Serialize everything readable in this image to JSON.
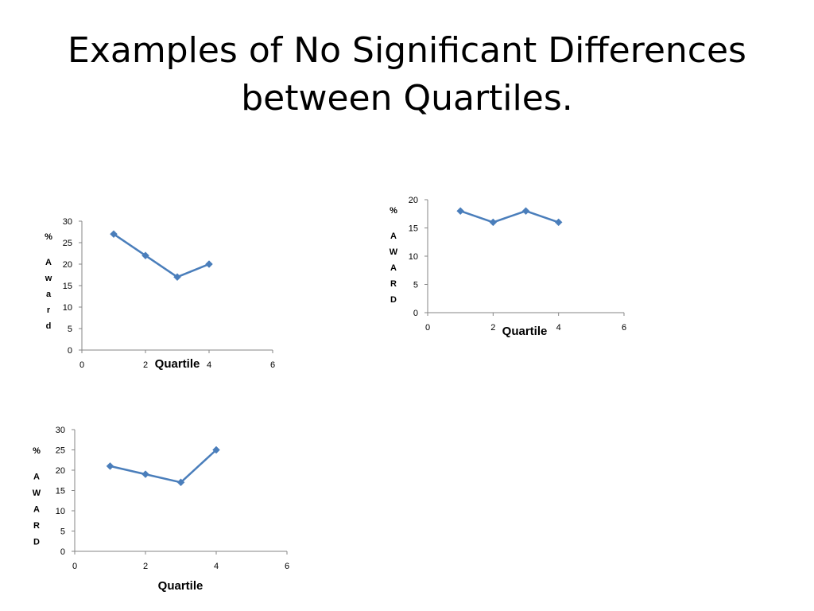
{
  "slide": {
    "title": "Examples of No Significant Differences between Quartiles."
  },
  "colors": {
    "series": "#4a7ebb",
    "axis": "#868686"
  },
  "chart_data": [
    {
      "type": "scatter",
      "title": "",
      "xlabel": "Quartile",
      "ylabel_chars": [
        "%",
        "A",
        "w",
        "a",
        "r",
        "d"
      ],
      "xlim": [
        0,
        6
      ],
      "ylim": [
        0,
        30
      ],
      "x_ticks": [
        "0",
        "2",
        "4",
        "6"
      ],
      "y_ticks": [
        "0",
        "5",
        "10",
        "15",
        "20",
        "25",
        "30"
      ],
      "series": [
        {
          "x": [
            1,
            2,
            3,
            4
          ],
          "y": [
            27,
            22,
            17,
            20
          ],
          "color": "#4a7ebb",
          "marker": "diamond"
        }
      ]
    },
    {
      "type": "scatter",
      "title": "",
      "xlabel": "Quartile",
      "ylabel_chars": [
        "%",
        "A",
        "W",
        "A",
        "R",
        "D"
      ],
      "xlim": [
        0,
        6
      ],
      "ylim": [
        0,
        20
      ],
      "x_ticks": [
        "0",
        "2",
        "4",
        "6"
      ],
      "y_ticks": [
        "0",
        "5",
        "10",
        "15",
        "20"
      ],
      "series": [
        {
          "x": [
            1,
            2,
            3,
            4
          ],
          "y": [
            18,
            16,
            18,
            16
          ],
          "color": "#4a7ebb",
          "marker": "diamond"
        }
      ]
    },
    {
      "type": "scatter",
      "title": "",
      "xlabel": "Quartile",
      "ylabel_chars": [
        "%",
        "A",
        "W",
        "A",
        "R",
        "D"
      ],
      "xlim": [
        0,
        6
      ],
      "ylim": [
        0,
        30
      ],
      "x_ticks": [
        "0",
        "2",
        "4",
        "6"
      ],
      "y_ticks": [
        "0",
        "5",
        "10",
        "15",
        "20",
        "25",
        "30"
      ],
      "series": [
        {
          "x": [
            1,
            2,
            3,
            4
          ],
          "y": [
            21,
            19,
            17,
            25
          ],
          "color": "#4a7ebb",
          "marker": "diamond"
        }
      ]
    }
  ]
}
